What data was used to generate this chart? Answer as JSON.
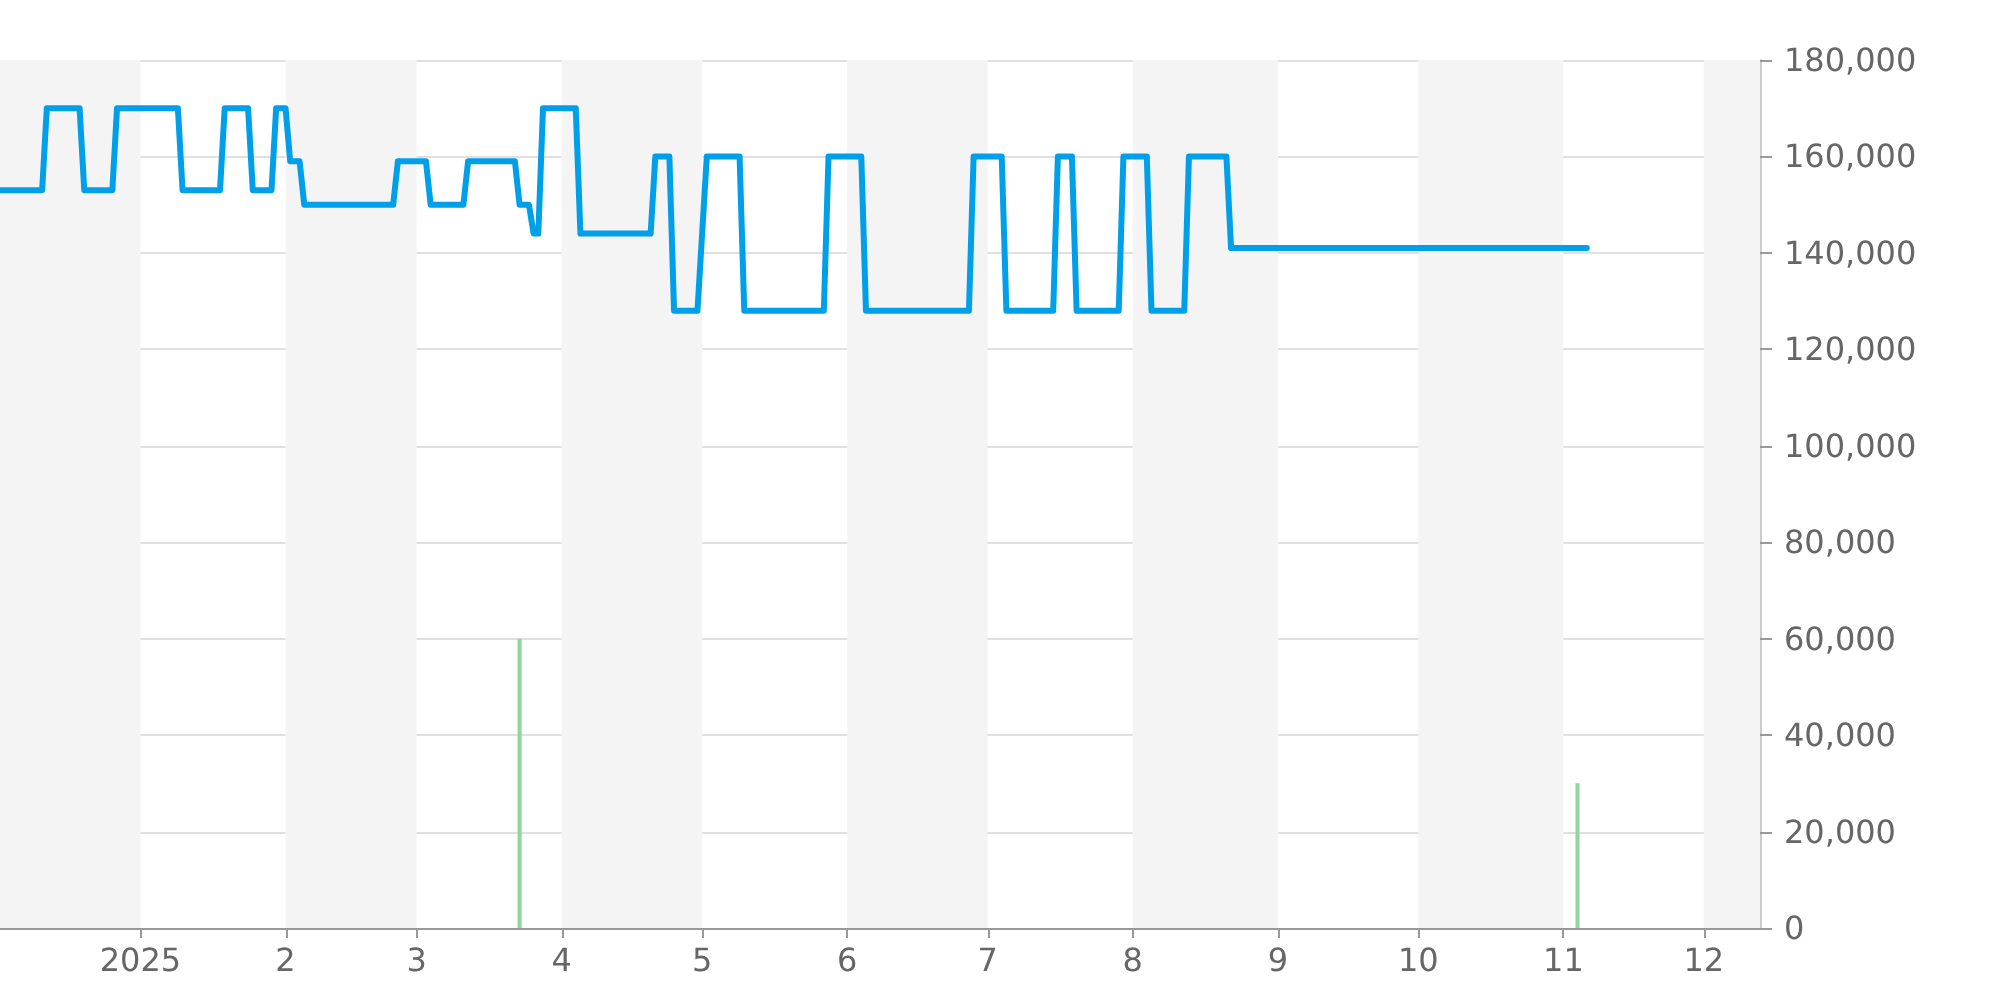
{
  "chart_data": {
    "type": "line",
    "xlim": [
      "2024-12-02",
      "2025-12-13"
    ],
    "xticks": [
      {
        "value": "2025-01-01",
        "label": "2025"
      },
      {
        "value": "2025-02-01",
        "label": "2"
      },
      {
        "value": "2025-03-01",
        "label": "3"
      },
      {
        "value": "2025-04-01",
        "label": "4"
      },
      {
        "value": "2025-05-01",
        "label": "5"
      },
      {
        "value": "2025-06-01",
        "label": "6"
      },
      {
        "value": "2025-07-01",
        "label": "7"
      },
      {
        "value": "2025-08-01",
        "label": "8"
      },
      {
        "value": "2025-09-01",
        "label": "9"
      },
      {
        "value": "2025-10-01",
        "label": "10"
      },
      {
        "value": "2025-11-01",
        "label": "11"
      },
      {
        "value": "2025-12-01",
        "label": "12"
      }
    ],
    "ylim": [
      0,
      180000
    ],
    "yticks": [
      0,
      {
        "value": 20000,
        "label": "20,000"
      },
      {
        "value": 40000,
        "label": "40,000"
      },
      {
        "value": 60000,
        "label": "60,000"
      },
      {
        "value": 80000,
        "label": "80,000"
      },
      {
        "value": 100000,
        "label": "100,000"
      },
      {
        "value": 120000,
        "label": "120,000"
      },
      {
        "value": 140000,
        "label": "140,000"
      },
      {
        "value": 160000,
        "label": "160,000"
      },
      {
        "value": 180000,
        "label": "180,000"
      }
    ],
    "grid": "y",
    "marker": "none",
    "line_style": "solid",
    "bands": [
      {
        "axis": "x",
        "from": "2024-12-02",
        "to": "2025-01-01",
        "color": "#f4f4f4"
      },
      {
        "axis": "x",
        "from": "2025-02-01",
        "to": "2025-03-01",
        "color": "#f4f4f4"
      },
      {
        "axis": "x",
        "from": "2025-04-01",
        "to": "2025-05-01",
        "color": "#f4f4f4"
      },
      {
        "axis": "x",
        "from": "2025-06-01",
        "to": "2025-07-01",
        "color": "#f4f4f4"
      },
      {
        "axis": "x",
        "from": "2025-08-01",
        "to": "2025-09-01",
        "color": "#f4f4f4"
      },
      {
        "axis": "x",
        "from": "2025-10-01",
        "to": "2025-11-01",
        "color": "#f4f4f4"
      },
      {
        "axis": "x",
        "from": "2025-12-01",
        "to": "2025-12-13",
        "color": "#f4f4f4"
      }
    ],
    "series": [
      {
        "color": "#00a0e9",
        "x": [
          "2024-12-02",
          "2024-12-11",
          "2024-12-12",
          "2024-12-19",
          "2024-12-20",
          "2024-12-26",
          "2024-12-27",
          "2025-01-09",
          "2025-01-10",
          "2025-01-18",
          "2025-01-19",
          "2025-01-24",
          "2025-01-25",
          "2025-01-29",
          "2025-01-30",
          "2025-02-01",
          "2025-02-02",
          "2025-02-04",
          "2025-02-05",
          "2025-02-24",
          "2025-02-25",
          "2025-03-03",
          "2025-03-04",
          "2025-03-11",
          "2025-03-12",
          "2025-03-22",
          "2025-03-23",
          "2025-03-25",
          "2025-03-26",
          "2025-03-27",
          "2025-03-28",
          "2025-04-04",
          "2025-04-05",
          "2025-04-20",
          "2025-04-21",
          "2025-04-24",
          "2025-04-25",
          "2025-04-30",
          "2025-05-02",
          "2025-05-09",
          "2025-05-10",
          "2025-05-27",
          "2025-05-28",
          "2025-06-04",
          "2025-06-05",
          "2025-06-27",
          "2025-06-28",
          "2025-07-04",
          "2025-07-05",
          "2025-07-15",
          "2025-07-16",
          "2025-07-19",
          "2025-07-20",
          "2025-07-29",
          "2025-07-30",
          "2025-08-04",
          "2025-08-05",
          "2025-08-12",
          "2025-08-13",
          "2025-08-21",
          "2025-08-22",
          "2025-11-06"
        ],
        "values": [
          153000,
          153000,
          170000,
          170000,
          153000,
          153000,
          170000,
          170000,
          153000,
          153000,
          170000,
          170000,
          153000,
          153000,
          170000,
          170000,
          159000,
          159000,
          150000,
          150000,
          159000,
          159000,
          150000,
          150000,
          159000,
          159000,
          150000,
          150000,
          144000,
          144000,
          170000,
          170000,
          144000,
          144000,
          160000,
          160000,
          128000,
          128000,
          160000,
          160000,
          128000,
          128000,
          160000,
          160000,
          128000,
          128000,
          160000,
          160000,
          128000,
          128000,
          160000,
          160000,
          128000,
          128000,
          160000,
          160000,
          128000,
          128000,
          160000,
          160000,
          141000,
          141000
        ]
      },
      {
        "type": "bar",
        "color": "#8fd69c",
        "x": [
          "2025-03-23",
          "2025-11-04"
        ],
        "values": [
          60000,
          30000
        ]
      }
    ]
  }
}
